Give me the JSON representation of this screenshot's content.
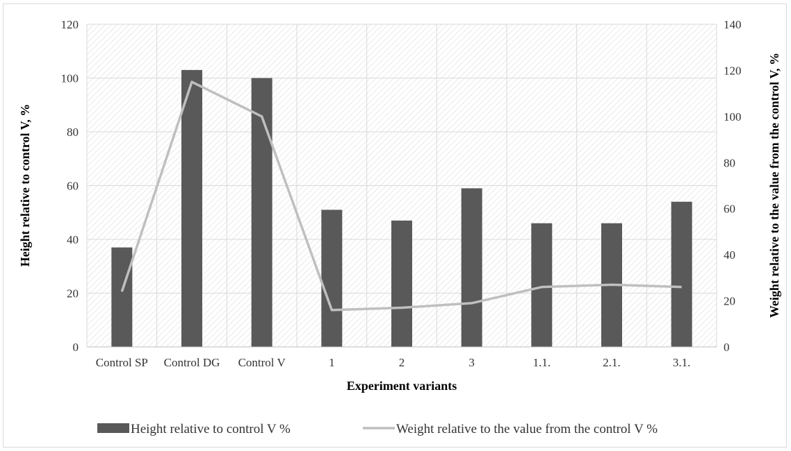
{
  "chart_data": {
    "type": "bar",
    "xlabel": "Experiment variants",
    "ylabel": "Height relative to control V, %",
    "y2label": "Weight relative to the value from the control V, %",
    "categories": [
      "Control SP",
      "Control DG",
      "Control V",
      "1",
      "2",
      "3",
      "1.1.",
      "2.1.",
      "3.1."
    ],
    "ylim": [
      0,
      120
    ],
    "y2lim": [
      0,
      140
    ],
    "yticks": [
      "0",
      "20",
      "40",
      "60",
      "80",
      "100",
      "120"
    ],
    "y2ticks": [
      "0",
      "20",
      "40",
      "60",
      "80",
      "100",
      "120",
      "140"
    ],
    "series": [
      {
        "name": "Height relative to control V %",
        "type": "bar",
        "axis": "left",
        "color": "#595959",
        "values": [
          37,
          103,
          100,
          51,
          47,
          59,
          46,
          46,
          54
        ]
      },
      {
        "name": "Weight relative to the value from the control V %",
        "type": "line",
        "axis": "right",
        "color": "#bfbfbf",
        "values": [
          24,
          115,
          100,
          16,
          17,
          19,
          26,
          27,
          26
        ]
      }
    ],
    "grid": true,
    "legend": "bottom"
  }
}
